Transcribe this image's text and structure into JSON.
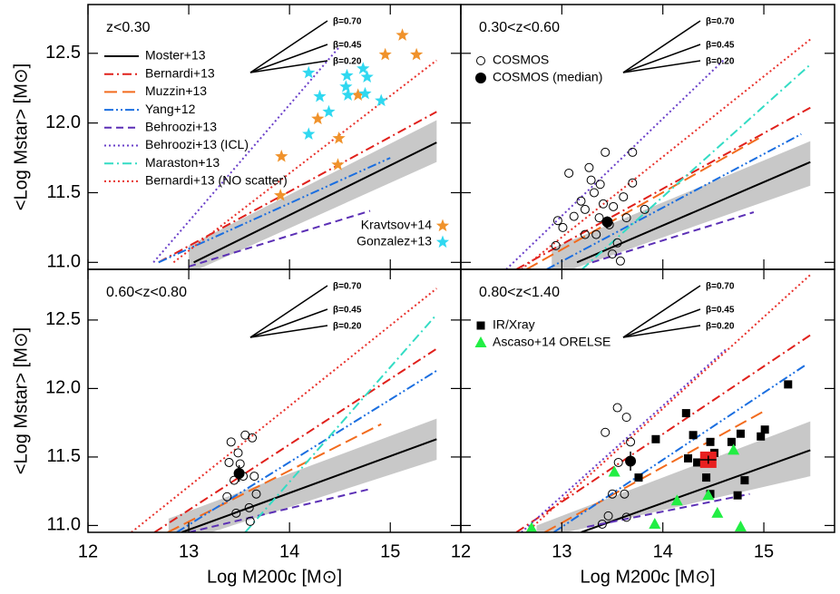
{
  "chart_data": [
    {
      "type": "line",
      "annotation": "z<0.30",
      "xlim": [
        12,
        15.7
      ],
      "ylim": [
        10.95,
        12.85
      ],
      "xticks": [
        12,
        13,
        14,
        15
      ],
      "yticks": [
        {
          "value": 11,
          "label": "11.0"
        },
        {
          "value": 11.5,
          "label": "11.5"
        },
        {
          "value": 12,
          "label": "12.0"
        },
        {
          "value": 12.5,
          "label": "12.5"
        }
      ],
      "tick_labels": {
        "x": false,
        "y": true
      },
      "ylabel": "<Log Mstar> [M⊙]",
      "slope_labels": [
        "β=0.70",
        "β=0.45",
        "β=0.20"
      ],
      "legend_corner": "lower right",
      "legend_entries": [
        {
          "name": "Moster+13",
          "color": "#000000",
          "dash": "solid"
        },
        {
          "name": "Bernardi+13",
          "color": "#e0201b",
          "dash": "dashdot"
        },
        {
          "name": "Muzzin+13",
          "color": "#f26b1d",
          "dash": "longdash"
        },
        {
          "name": "Yang+12",
          "color": "#1a6ee0",
          "dash": "dashdotdot"
        },
        {
          "name": "Behroozi+13",
          "color": "#5b2fb5",
          "dash": "dash"
        },
        {
          "name": "Behroozi+13 (ICL)",
          "color": "#6a3fc9",
          "dash": "dot"
        },
        {
          "name": "Maraston+13",
          "color": "#33dcc4",
          "dash": "dashdot"
        },
        {
          "name": "Bernardi+13 (NO scatter)",
          "color": "#e8302a",
          "dash": "dot"
        }
      ],
      "band": {
        "color": "#c8c8c8",
        "x": [
          13.0,
          15.46
        ],
        "lower": [
          10.92,
          11.72
        ],
        "upper": [
          11.12,
          12.02
        ]
      },
      "lines": [
        {
          "color": "#000000",
          "dash": "solid",
          "x": [
            13.05,
            15.46
          ],
          "values": [
            11.0,
            11.86
          ]
        },
        {
          "color": "#e0201b",
          "dash": "dashdot",
          "x": [
            12.7,
            15.46
          ],
          "values": [
            11.0,
            12.08
          ]
        },
        {
          "color": "#1a6ee0",
          "dash": "dashdotdot",
          "x": [
            12.7,
            15.0
          ],
          "values": [
            11.0,
            11.75
          ]
        },
        {
          "color": "#5b2fb5",
          "dash": "dash",
          "x": [
            13.0,
            14.8
          ],
          "values": [
            10.97,
            11.37
          ]
        },
        {
          "color": "#6a3fc9",
          "dash": "dot",
          "x": [
            12.65,
            14.5
          ],
          "values": [
            11.0,
            12.55
          ]
        },
        {
          "color": "#e8302a",
          "dash": "dot",
          "x": [
            12.85,
            15.46
          ],
          "values": [
            11.0,
            12.45
          ]
        }
      ],
      "points": [
        {
          "name": "Kravtsov+14",
          "marker": "star",
          "color": "#f0922b",
          "x": [
            13.92,
            13.91,
            14.28,
            14.49,
            14.48,
            14.68,
            14.95,
            15.12,
            15.26
          ],
          "values": [
            11.76,
            11.48,
            12.03,
            11.89,
            11.7,
            12.2,
            12.49,
            12.63,
            12.49
          ]
        },
        {
          "name": "Gonzalez+13",
          "marker": "star",
          "color": "#30d8f0",
          "x": [
            14.19,
            14.3,
            14.19,
            14.39,
            14.57,
            14.56,
            14.73,
            14.77,
            14.75,
            14.91,
            14.58
          ],
          "values": [
            12.36,
            12.19,
            11.92,
            12.08,
            12.34,
            12.26,
            12.39,
            12.33,
            12.21,
            12.16,
            12.2
          ]
        }
      ]
    },
    {
      "type": "line",
      "annotation": "0.30<z<0.60",
      "xlim": [
        12,
        15.7
      ],
      "ylim": [
        10.95,
        12.85
      ],
      "xticks": [
        12,
        13,
        14,
        15
      ],
      "yticks": [
        11,
        11.5,
        12,
        12.5
      ],
      "tick_labels": {
        "x": false,
        "y": false
      },
      "slope_labels": [
        "β=0.70",
        "β=0.45",
        "β=0.20"
      ],
      "legend_corner": "upper left",
      "band": {
        "color": "#c8c8c8",
        "x": [
          12.9,
          15.46
        ],
        "lower": [
          10.9,
          11.55
        ],
        "upper": [
          11.1,
          11.87
        ]
      },
      "lines": [
        {
          "color": "#000000",
          "dash": "solid",
          "x": [
            13.15,
            15.46
          ],
          "values": [
            11.0,
            11.72
          ]
        },
        {
          "color": "#e0201b",
          "dash": "dashdot",
          "x": [
            12.55,
            15.46
          ],
          "values": [
            10.95,
            12.11
          ]
        },
        {
          "color": "#f26b1d",
          "dash": "longdash",
          "x": [
            12.65,
            14.95
          ],
          "values": [
            10.95,
            11.89
          ]
        },
        {
          "color": "#1a6ee0",
          "dash": "dashdotdot",
          "x": [
            12.85,
            15.37
          ],
          "values": [
            10.95,
            11.92
          ]
        },
        {
          "color": "#5b2fb5",
          "dash": "dash",
          "x": [
            13.3,
            14.9
          ],
          "values": [
            11.0,
            11.36
          ]
        },
        {
          "color": "#6a3fc9",
          "dash": "dot",
          "x": [
            12.45,
            14.6
          ],
          "values": [
            10.95,
            12.45
          ]
        },
        {
          "color": "#33dcc4",
          "dash": "dashdot",
          "x": [
            13.2,
            15.46
          ],
          "values": [
            10.95,
            12.42
          ]
        },
        {
          "color": "#e8302a",
          "dash": "dot",
          "x": [
            12.6,
            15.46
          ],
          "values": [
            10.95,
            12.6
          ]
        }
      ],
      "points": [
        {
          "name": "COSMOS",
          "marker": "circle-open",
          "color": "#000000",
          "x": [
            13.07,
            13.27,
            13.43,
            13.29,
            13.19,
            13.12,
            12.96,
            12.94,
            13.01,
            13.23,
            13.32,
            13.38,
            13.41,
            13.37,
            13.34,
            13.23,
            13.51,
            13.47,
            13.55,
            13.58,
            13.7,
            13.61,
            13.7,
            13.82,
            13.64,
            13.5
          ],
          "values": [
            11.64,
            11.68,
            11.79,
            11.59,
            11.44,
            11.33,
            11.3,
            11.12,
            11.25,
            11.38,
            11.5,
            11.56,
            11.42,
            11.32,
            11.2,
            11.2,
            11.4,
            11.27,
            11.14,
            11.01,
            11.79,
            11.47,
            11.57,
            11.38,
            11.32,
            11.06
          ]
        },
        {
          "name": "COSMOS (median)",
          "marker": "circle-filled",
          "color": "#000000",
          "x": [
            13.45
          ],
          "values": [
            11.29
          ],
          "errors": [
            0.04
          ]
        }
      ]
    },
    {
      "type": "line",
      "annotation": "0.60<z<0.80",
      "xlim": [
        12,
        15.7
      ],
      "ylim": [
        10.95,
        12.87
      ],
      "xticks": [
        12,
        13,
        14,
        15
      ],
      "yticks": [
        {
          "value": 11,
          "label": "11.0"
        },
        {
          "value": 11.5,
          "label": "11.5"
        },
        {
          "value": 12,
          "label": "12.0"
        },
        {
          "value": 12.5,
          "label": "12.5"
        }
      ],
      "tick_labels": {
        "x": true,
        "y": true
      },
      "ylabel": "<Log Mstar> [M⊙]",
      "xlabel": "Log M200c [M⊙]",
      "slope_labels": [
        "β=0.70",
        "β=0.45",
        "β=0.20"
      ],
      "band": {
        "color": "#c8c8c8",
        "x": [
          12.8,
          15.46
        ],
        "lower": [
          10.85,
          11.48
        ],
        "upper": [
          11.05,
          11.78
        ]
      },
      "lines": [
        {
          "color": "#000000",
          "dash": "solid",
          "x": [
            12.93,
            15.46
          ],
          "values": [
            10.95,
            11.63
          ]
        },
        {
          "color": "#e0201b",
          "dash": "dashdot",
          "x": [
            12.66,
            15.46
          ],
          "values": [
            10.95,
            12.29
          ]
        },
        {
          "color": "#f26b1d",
          "dash": "longdash",
          "x": [
            12.79,
            14.91
          ],
          "values": [
            10.95,
            11.74
          ]
        },
        {
          "color": "#1a6ee0",
          "dash": "dashdotdot",
          "x": [
            12.88,
            15.46
          ],
          "values": [
            10.95,
            12.13
          ]
        },
        {
          "color": "#5b2fb5",
          "dash": "dash",
          "x": [
            13.0,
            14.82
          ],
          "values": [
            10.95,
            11.27
          ]
        },
        {
          "color": "#33dcc4",
          "dash": "dashdot",
          "x": [
            13.56,
            15.46
          ],
          "values": [
            10.95,
            12.54
          ]
        },
        {
          "color": "#e8302a",
          "dash": "dot",
          "x": [
            12.43,
            15.46
          ],
          "values": [
            10.95,
            12.73
          ]
        }
      ],
      "points": [
        {
          "marker": "circle-open",
          "color": "#000000",
          "x": [
            13.42,
            13.49,
            13.56,
            13.63,
            13.51,
            13.45,
            13.38,
            13.47,
            13.6,
            13.67,
            13.4,
            13.54,
            13.61,
            13.65
          ],
          "values": [
            11.61,
            11.53,
            11.66,
            11.64,
            11.45,
            11.33,
            11.21,
            11.09,
            11.13,
            11.23,
            11.46,
            11.36,
            11.03,
            11.36
          ]
        },
        {
          "marker": "circle-filled",
          "color": "#000000",
          "x": [
            13.5
          ],
          "values": [
            11.38
          ],
          "errors": [
            0.06
          ]
        }
      ]
    },
    {
      "type": "line",
      "annotation": "0.80<z<1.40",
      "xlim": [
        12,
        15.7
      ],
      "ylim": [
        10.95,
        12.87
      ],
      "xticks": [
        12,
        13,
        14,
        15
      ],
      "yticks": [
        11,
        11.5,
        12,
        12.5
      ],
      "tick_labels": {
        "x": true,
        "y": false
      },
      "xlabel": "Log M200c [M⊙]",
      "slope_labels": [
        "β=0.70",
        "β=0.45",
        "β=0.20"
      ],
      "legend_corner": "upper left",
      "band": {
        "color": "#c8c8c8",
        "x": [
          12.75,
          15.46
        ],
        "lower": [
          10.9,
          11.36
        ],
        "upper": [
          11.0,
          11.76
        ]
      },
      "lines": [
        {
          "color": "#000000",
          "dash": "solid",
          "x": [
            13.19,
            15.46
          ],
          "values": [
            10.95,
            11.55
          ]
        },
        {
          "color": "#e0201b",
          "dash": "dashdot",
          "x": [
            12.55,
            15.46
          ],
          "values": [
            10.95,
            12.39
          ]
        },
        {
          "color": "#f26b1d",
          "dash": "longdash",
          "x": [
            12.83,
            14.99
          ],
          "values": [
            10.95,
            11.83
          ]
        },
        {
          "color": "#1a6ee0",
          "dash": "dashdotdot",
          "x": [
            12.92,
            15.41
          ],
          "values": [
            10.95,
            12.17
          ]
        },
        {
          "color": "#5b2fb5",
          "dash": "dash",
          "x": [
            13.25,
            14.86
          ],
          "values": [
            10.99,
            11.23
          ]
        },
        {
          "color": "#6a3fc9",
          "dash": "dot",
          "x": [
            12.6,
            14.63
          ],
          "values": [
            10.95,
            12.29
          ]
        },
        {
          "color": "#e8302a",
          "dash": "dot",
          "x": [
            12.65,
            15.46
          ],
          "values": [
            10.95,
            12.83
          ]
        }
      ],
      "points": [
        {
          "marker": "circle-open",
          "color": "#000000",
          "x": [
            13.43,
            13.55,
            13.68,
            13.64,
            13.5,
            13.62,
            13.64,
            13.4,
            13.46,
            13.56
          ],
          "values": [
            11.68,
            11.86,
            11.61,
            11.79,
            11.23,
            11.23,
            11.06,
            11.01,
            11.07,
            11.46
          ]
        },
        {
          "marker": "circle-filled",
          "color": "#000000",
          "x": [
            13.68
          ],
          "values": [
            11.47
          ],
          "errors": [
            0.07
          ]
        },
        {
          "name": "IR/Xray",
          "marker": "square",
          "color": "#000000",
          "x": [
            13.93,
            14.23,
            14.25,
            14.3,
            14.34,
            14.47,
            14.43,
            14.47,
            14.51,
            14.68,
            14.77,
            14.97,
            15.01,
            15.24,
            14.81,
            14.74,
            13.76
          ],
          "values": [
            11.63,
            11.82,
            11.49,
            11.66,
            11.46,
            11.61,
            11.35,
            11.23,
            11.53,
            11.61,
            11.67,
            11.65,
            11.7,
            12.03,
            11.33,
            11.22,
            11.35
          ]
        },
        {
          "name": "Ascaso+14 ORELSE",
          "marker": "triangle",
          "color": "#22ee44",
          "x": [
            12.7,
            13.52,
            13.92,
            14.14,
            14.45,
            14.54,
            14.7,
            14.77
          ],
          "values": [
            10.98,
            11.39,
            11.01,
            11.18,
            11.22,
            11.09,
            11.55,
            10.99
          ]
        },
        {
          "marker": "square-big",
          "color": "#e82020",
          "x": [
            14.45
          ],
          "values": [
            11.48
          ],
          "errors": [
            0.03
          ],
          "x_errors": [
            0.08
          ]
        }
      ]
    }
  ]
}
